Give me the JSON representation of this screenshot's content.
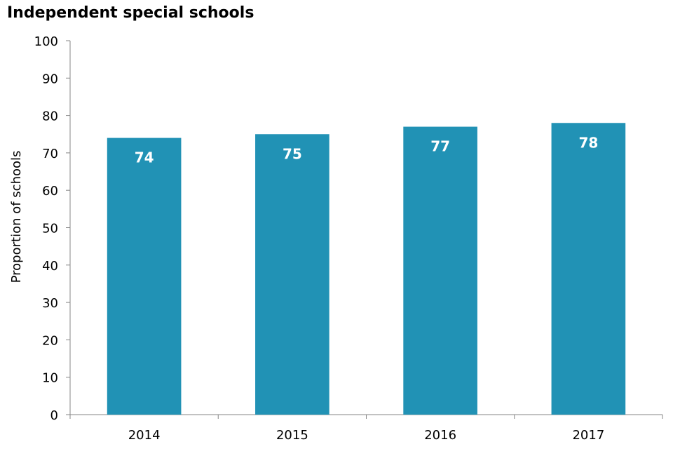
{
  "chart_data": {
    "type": "bar",
    "title": "Independent special schools",
    "xlabel": "",
    "ylabel": "Proportion of schools",
    "categories": [
      "2014",
      "2015",
      "2016",
      "2017"
    ],
    "values": [
      74,
      75,
      77,
      78
    ],
    "data_labels": [
      "74",
      "75",
      "77",
      "78"
    ],
    "ylim": [
      0,
      100
    ],
    "yticks": [
      0,
      10,
      20,
      30,
      40,
      50,
      60,
      70,
      80,
      90,
      100
    ],
    "grid": false,
    "legend": "none",
    "bar_color": "#2192b5",
    "data_label_color": "#ffffff"
  }
}
